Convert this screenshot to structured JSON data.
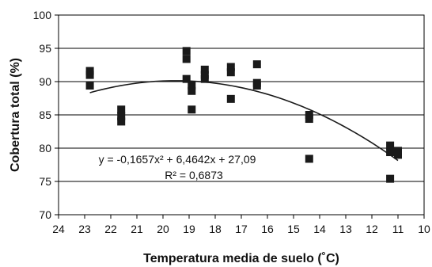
{
  "chart_data": {
    "type": "scatter",
    "xlabel": "Temperatura media de suelo (˚C)",
    "ylabel": "Cobertura total  (%)",
    "xlim": [
      24,
      10
    ],
    "ylim": [
      70,
      100
    ],
    "x_reversed": true,
    "xticks": [
      24,
      23,
      22,
      21,
      20,
      19,
      18,
      17,
      16,
      15,
      14,
      13,
      12,
      11,
      10
    ],
    "yticks": [
      70,
      75,
      80,
      85,
      90,
      95,
      100
    ],
    "grid": "horizontal",
    "marker": "square",
    "marker_color": "#1a1a1a",
    "line_color": "#1a1a1a",
    "points": [
      {
        "x": 22.8,
        "y": 91.6
      },
      {
        "x": 22.8,
        "y": 91.0
      },
      {
        "x": 22.8,
        "y": 89.4
      },
      {
        "x": 21.6,
        "y": 85.8
      },
      {
        "x": 21.6,
        "y": 84.8
      },
      {
        "x": 21.6,
        "y": 84.0
      },
      {
        "x": 19.1,
        "y": 94.6
      },
      {
        "x": 19.1,
        "y": 93.4
      },
      {
        "x": 19.1,
        "y": 90.4
      },
      {
        "x": 18.9,
        "y": 89.4
      },
      {
        "x": 18.9,
        "y": 88.6
      },
      {
        "x": 18.9,
        "y": 85.8
      },
      {
        "x": 18.4,
        "y": 91.8
      },
      {
        "x": 18.4,
        "y": 91.0
      },
      {
        "x": 18.4,
        "y": 90.4
      },
      {
        "x": 17.4,
        "y": 92.2
      },
      {
        "x": 17.4,
        "y": 91.4
      },
      {
        "x": 17.4,
        "y": 87.4
      },
      {
        "x": 16.4,
        "y": 92.6
      },
      {
        "x": 16.4,
        "y": 89.8
      },
      {
        "x": 16.4,
        "y": 89.4
      },
      {
        "x": 14.4,
        "y": 85.0
      },
      {
        "x": 14.4,
        "y": 84.4
      },
      {
        "x": 14.4,
        "y": 78.4
      },
      {
        "x": 11.3,
        "y": 80.4
      },
      {
        "x": 11.3,
        "y": 79.4
      },
      {
        "x": 11.3,
        "y": 75.4
      },
      {
        "x": 11.0,
        "y": 79.6
      },
      {
        "x": 11.0,
        "y": 79.0
      }
    ],
    "trendline": {
      "type": "polynomial",
      "coefficients": [
        -0.1657,
        6.4642,
        27.09
      ],
      "x_range": [
        22.8,
        11.0
      ],
      "equation_label": "y = -0,1657x² + 6,4642x + 27,09",
      "r2_label": "R² = 0,6873"
    }
  }
}
